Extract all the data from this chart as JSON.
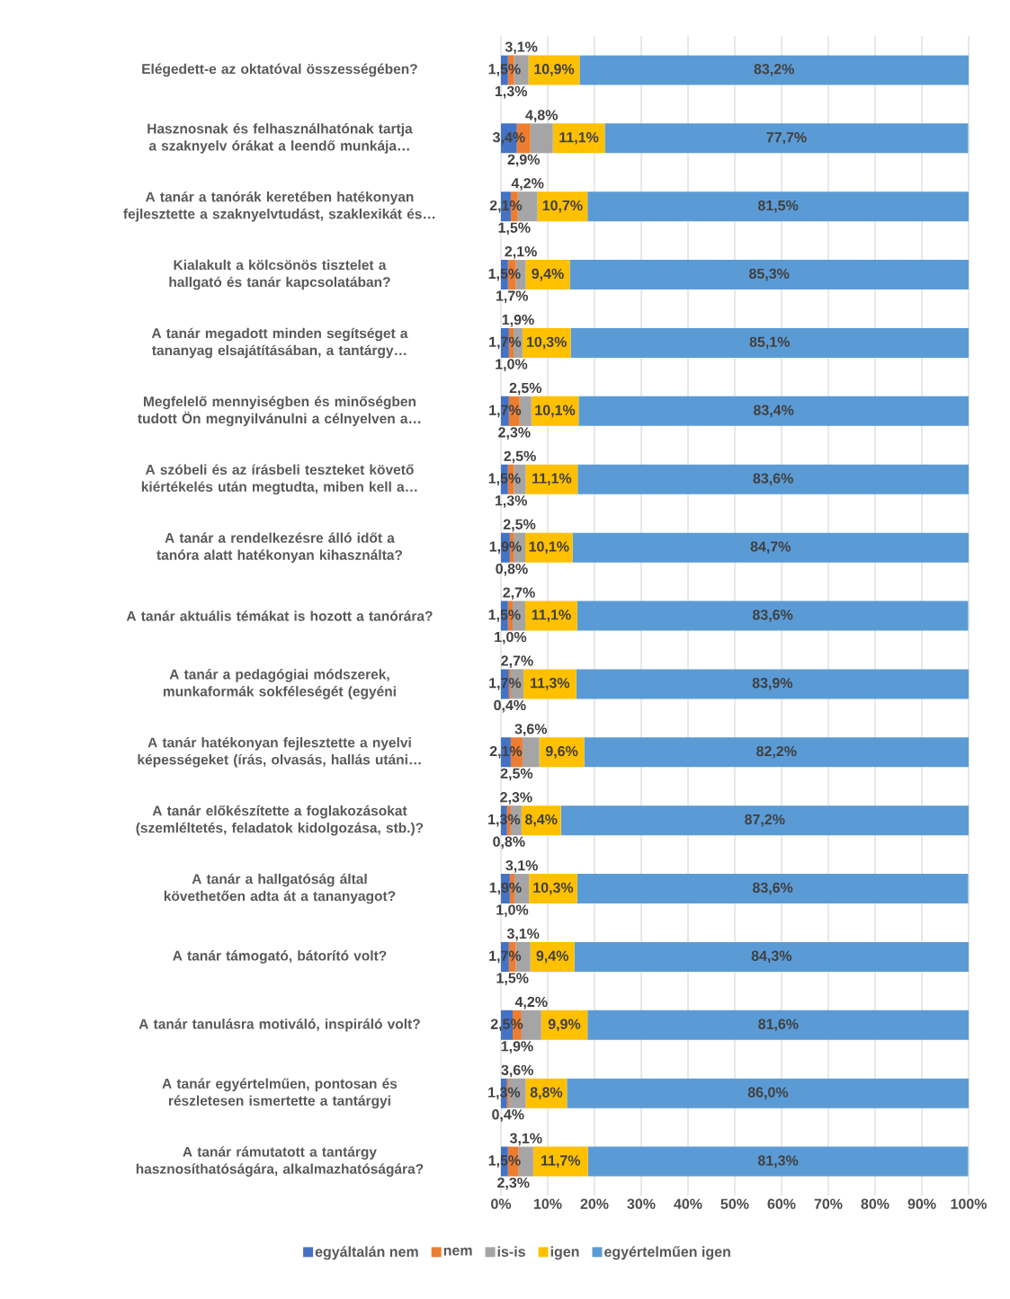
{
  "chart_data": {
    "type": "bar",
    "orientation": "horizontal",
    "stacked": true,
    "categories": [
      "Elégedett-e az oktatóval összességében?",
      "Hasznosnak és felhasználhatónak tartja a szaknyelv órákat a leendő munkája…",
      "A tanár a tanórák keretében hatékonyan fejlesztette a szaknyelvtudást, szaklexikát és…",
      "Kialakult a kölcsönös tisztelet a hallgató és tanár kapcsolatában?",
      "A tanár megadott minden segítséget a tananyag elsajátításában, a tantárgy…",
      "Megfelelő mennyiségben és minőségben tudott Ön megnyilvánulni a célnyelven a…",
      "A szóbeli és az írásbeli teszteket követő kiértékelés után megtudta, miben kell a…",
      "A tanár a rendelkezésre álló időt a tanóra alatt hatékonyan kihasználta?",
      "A tanár aktuális témákat is hozott a tanórára?",
      "A tanár a pedagógiai módszerek, munkaformák sokféleségét (egyéni",
      "A tanár hatékonyan fejlesztette a nyelvi képességeket (írás, olvasás, hallás utáni…",
      "A tanár előkészítette a foglakozásokat (szemléltetés, feladatok kidolgozása, stb.)?",
      "A tanár a hallgatóság által követhetően adta át a tananyagot?",
      "A tanár támogató, bátorító volt?",
      "A tanár tanulásra motiváló, inspiráló volt?",
      "A tanár egyértelműen, pontosan és részletesen ismertette a tantárgyi",
      "A tanár rámutatott a tantárgy hasznosíthatóságára, alkalmazhatóságára?"
    ],
    "series": [
      {
        "name": "egyáltalán nem",
        "color": "#4472c4",
        "values": [
          1.5,
          3.4,
          2.1,
          1.5,
          1.7,
          1.7,
          1.5,
          1.9,
          1.5,
          1.7,
          2.1,
          1.3,
          1.9,
          1.7,
          2.5,
          1.3,
          1.5
        ],
        "value_labels": [
          "1,5%",
          "3,4%",
          "2,1%",
          "1,5%",
          "1,7%",
          "1,7%",
          "1,5%",
          "1,9%",
          "1,5%",
          "1,7%",
          "2,1%",
          "1,3%",
          "1,9%",
          "1,7%",
          "2,5%",
          "1,3%",
          "1,5%"
        ]
      },
      {
        "name": "nem",
        "color": "#ed7d31",
        "values": [
          1.3,
          2.9,
          1.5,
          1.7,
          1.0,
          2.3,
          1.3,
          0.8,
          1.0,
          0.4,
          2.5,
          0.8,
          1.0,
          1.5,
          1.9,
          0.4,
          2.3
        ],
        "value_labels": [
          "1,3%",
          "2,9%",
          "1,5%",
          "1,7%",
          "1,0%",
          "2,3%",
          "1,3%",
          "0,8%",
          "1,0%",
          "0,4%",
          "2,5%",
          "0,8%",
          "1,0%",
          "1,5%",
          "1,9%",
          "0,4%",
          "2,3%"
        ]
      },
      {
        "name": "is-is",
        "color": "#a5a5a5",
        "values": [
          3.1,
          4.8,
          4.2,
          2.1,
          1.9,
          2.5,
          2.5,
          2.5,
          2.7,
          2.7,
          3.6,
          2.3,
          3.1,
          3.1,
          4.2,
          3.6,
          3.1
        ],
        "value_labels": [
          "3,1%",
          "4,8%",
          "4,2%",
          "2,1%",
          "1,9%",
          "2,5%",
          "2,5%",
          "2,5%",
          "2,7%",
          "2,7%",
          "3,6%",
          "2,3%",
          "3,1%",
          "3,1%",
          "4,2%",
          "3,6%",
          "3,1%"
        ]
      },
      {
        "name": "igen",
        "color": "#ffc000",
        "values": [
          10.9,
          11.1,
          10.7,
          9.4,
          10.3,
          10.1,
          11.1,
          10.1,
          11.1,
          11.3,
          9.6,
          8.4,
          10.3,
          9.4,
          9.9,
          8.8,
          11.7
        ],
        "value_labels": [
          "10,9%",
          "11,1%",
          "10,7%",
          "9,4%",
          "10,3%",
          "10,1%",
          "11,1%",
          "10,1%",
          "11,1%",
          "11,3%",
          "9,6%",
          "8,4%",
          "10,3%",
          "9,4%",
          "9,9%",
          "8,8%",
          "11,7%"
        ]
      },
      {
        "name": "egyértelműen igen",
        "color": "#5b9bd5",
        "values": [
          83.2,
          77.7,
          81.5,
          85.3,
          85.1,
          83.4,
          83.6,
          84.7,
          83.6,
          83.9,
          82.2,
          87.2,
          83.6,
          84.3,
          81.6,
          86.0,
          81.3
        ],
        "value_labels": [
          "83,2%",
          "77,7%",
          "81,5%",
          "85,3%",
          "85,1%",
          "83,4%",
          "83,6%",
          "84,7%",
          "83,6%",
          "83,9%",
          "82,2%",
          "87,2%",
          "83,6%",
          "84,3%",
          "81,6%",
          "86,0%",
          "81,3%"
        ]
      }
    ],
    "xlim": [
      0,
      100
    ],
    "xticks": [
      {
        "value": 0,
        "label": "0%"
      },
      {
        "value": 10,
        "label": "10%"
      },
      {
        "value": 20,
        "label": "20%"
      },
      {
        "value": 30,
        "label": "30%"
      },
      {
        "value": 40,
        "label": "40%"
      },
      {
        "value": 50,
        "label": "50%"
      },
      {
        "value": 60,
        "label": "60%"
      },
      {
        "value": 70,
        "label": "70%"
      },
      {
        "value": 80,
        "label": "80%"
      },
      {
        "value": 90,
        "label": "90%"
      },
      {
        "value": 100,
        "label": "100%"
      }
    ],
    "grid": "x",
    "legend": "bottom"
  }
}
